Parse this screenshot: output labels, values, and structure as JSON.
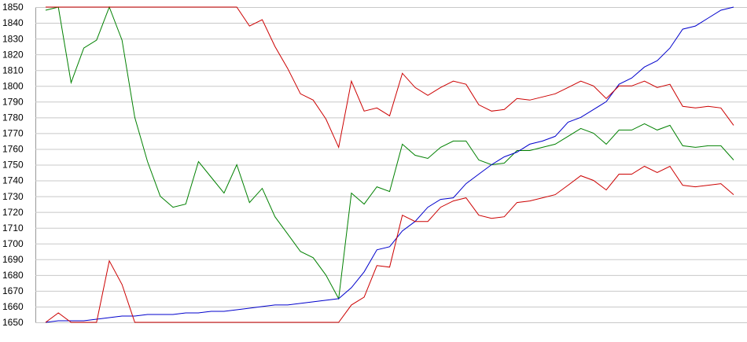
{
  "chart_data": {
    "type": "line",
    "series": [
      {
        "color": "#008000",
        "values": [
          1848,
          1850,
          1802,
          1824,
          1829,
          1850,
          1829,
          1780,
          1752,
          1730,
          1723,
          1725,
          1752,
          1742,
          1732,
          1750,
          1726,
          1735,
          1717,
          1706,
          1695,
          1691,
          1680,
          1665,
          1732,
          1725,
          1736,
          1733,
          1763,
          1756,
          1754,
          1761,
          1765,
          1765,
          1753,
          1750,
          1751,
          1759,
          1759,
          1761,
          1763,
          1768,
          1773,
          1770,
          1763,
          1772,
          1772,
          1776,
          1772,
          1775,
          1762,
          1761,
          1762,
          1762,
          1753
        ]
      },
      {
        "color": "#0000cc",
        "values": [
          1650,
          1651,
          1651,
          1651,
          1652,
          1653,
          1654,
          1654,
          1655,
          1655,
          1655,
          1656,
          1656,
          1657,
          1657,
          1658,
          1659,
          1660,
          1661,
          1661,
          1662,
          1663,
          1664,
          1665,
          1672,
          1682,
          1696,
          1698,
          1708,
          1714,
          1723,
          1728,
          1729,
          1738,
          1744,
          1750,
          1755,
          1758,
          1763,
          1765,
          1768,
          1777,
          1780,
          1785,
          1790,
          1801,
          1805,
          1812,
          1816,
          1824,
          1836,
          1838,
          1843,
          1848,
          1850
        ]
      },
      {
        "color": "#cc0000",
        "values": [
          1850,
          1850,
          1850,
          1850,
          1850,
          1850,
          1850,
          1850,
          1850,
          1850,
          1850,
          1850,
          1850,
          1850,
          1850,
          1850,
          1838,
          1842,
          1825,
          1811,
          1795,
          1791,
          1779,
          1761,
          1803,
          1784,
          1786,
          1781,
          1808,
          1799,
          1794,
          1799,
          1803,
          1801,
          1788,
          1784,
          1785,
          1792,
          1791,
          1793,
          1795,
          1799,
          1803,
          1800,
          1792,
          1800,
          1800,
          1803,
          1799,
          1801,
          1787,
          1786,
          1787,
          1786,
          1775
        ]
      },
      {
        "color": "#cc0000",
        "values": [
          1650,
          1656,
          1650,
          1650,
          1650,
          1689,
          1674,
          1650,
          1650,
          1650,
          1650,
          1650,
          1650,
          1650,
          1650,
          1650,
          1650,
          1650,
          1650,
          1650,
          1650,
          1650,
          1650,
          1650,
          1661,
          1666,
          1686,
          1685,
          1718,
          1714,
          1714,
          1723,
          1727,
          1729,
          1718,
          1716,
          1717,
          1726,
          1727,
          1729,
          1731,
          1737,
          1743,
          1740,
          1734,
          1744,
          1744,
          1749,
          1745,
          1749,
          1737,
          1736,
          1737,
          1738,
          1731
        ]
      }
    ],
    "ylim": [
      1650,
      1850
    ],
    "yticks": [
      1650,
      1660,
      1670,
      1680,
      1690,
      1700,
      1710,
      1720,
      1730,
      1740,
      1750,
      1760,
      1770,
      1780,
      1790,
      1800,
      1810,
      1820,
      1830,
      1840,
      1850
    ],
    "grid": true
  }
}
